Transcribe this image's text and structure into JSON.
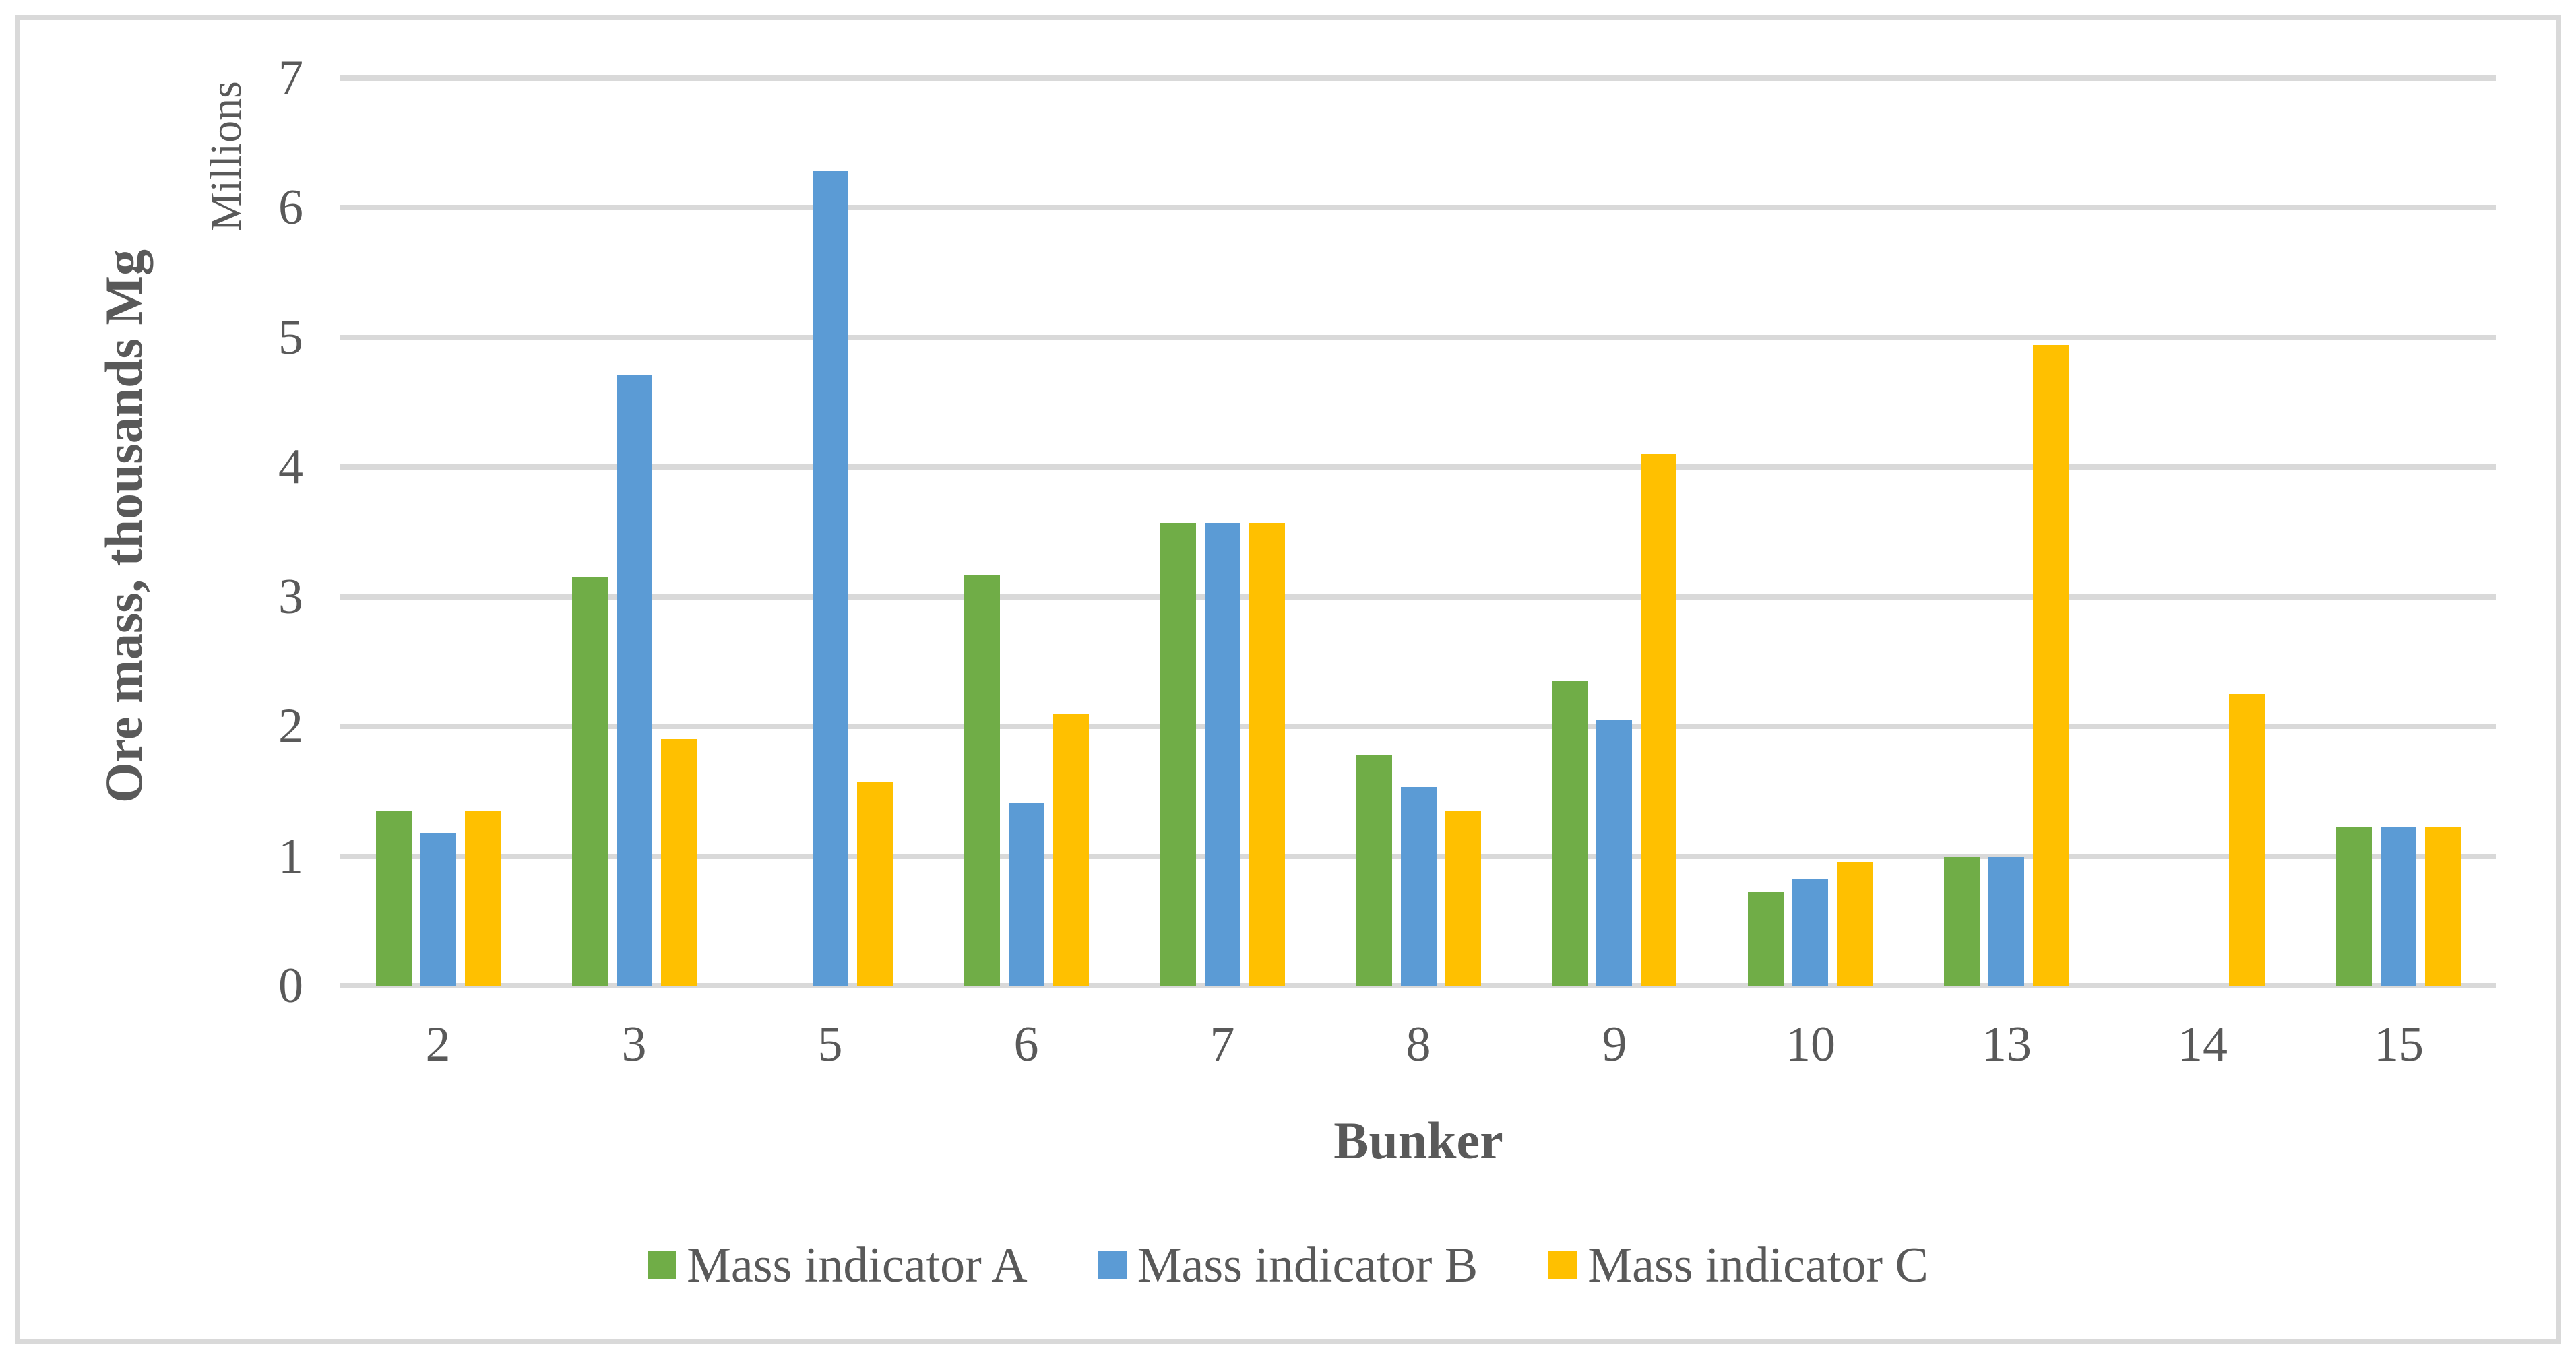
{
  "chart_data": {
    "type": "bar",
    "title": "",
    "categories": [
      "2",
      "3",
      "5",
      "6",
      "7",
      "8",
      "9",
      "10",
      "13",
      "14",
      "15"
    ],
    "series": [
      {
        "name": "Mass indicator A",
        "color": "#70AD47",
        "values": [
          1.35,
          3.15,
          0,
          3.17,
          3.57,
          1.78,
          2.35,
          0.72,
          0.99,
          0,
          1.22
        ]
      },
      {
        "name": "Mass indicator B",
        "color": "#5B9BD5",
        "values": [
          1.18,
          4.71,
          6.28,
          1.41,
          3.57,
          1.53,
          2.05,
          0.82,
          0.99,
          0,
          1.22
        ]
      },
      {
        "name": "Mass indicator C",
        "color": "#FFC000",
        "values": [
          1.35,
          1.9,
          1.57,
          2.1,
          3.57,
          1.35,
          4.1,
          0.95,
          4.94,
          2.25,
          1.22
        ]
      }
    ],
    "xlabel": "Bunker",
    "ylabel": "Ore mass, thousands Mg",
    "ylabel_secondary": "Millions",
    "ylim": [
      0,
      7
    ],
    "yticks": [
      "0",
      "1",
      "2",
      "3",
      "4",
      "5",
      "6",
      "7"
    ],
    "grid": true,
    "legend_position": "bottom",
    "colors": {
      "grid": "#D9D9D9",
      "frame": "#D9D9D9",
      "text": "#595959"
    }
  }
}
